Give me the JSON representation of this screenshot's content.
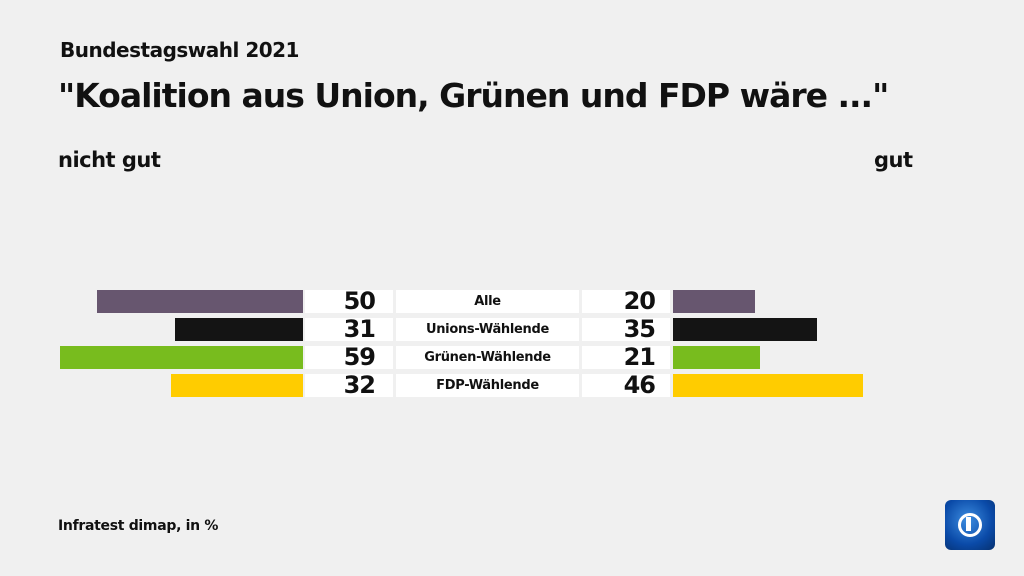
{
  "subtitle": "Bundestagswahl 2021",
  "title": "\"Koalition aus Union, Grünen und FDP wäre ...\"",
  "source": "Infratest dimap, in %",
  "chart_data": {
    "type": "bar",
    "title": "\"Koalition aus Union, Grünen und FDP wäre ...\"",
    "negative_label": "nicht gut",
    "positive_label": "gut",
    "categories": [
      "Alle",
      "Unions-Wählende",
      "Grünen-Wählende",
      "FDP-Wählende"
    ],
    "series": [
      {
        "name": "nicht gut",
        "values": [
          50,
          31,
          59,
          32
        ]
      },
      {
        "name": "gut",
        "values": [
          20,
          35,
          21,
          46
        ]
      }
    ],
    "colors": [
      "#67566f",
      "#141414",
      "#78bc1e",
      "#ffcc00"
    ]
  }
}
